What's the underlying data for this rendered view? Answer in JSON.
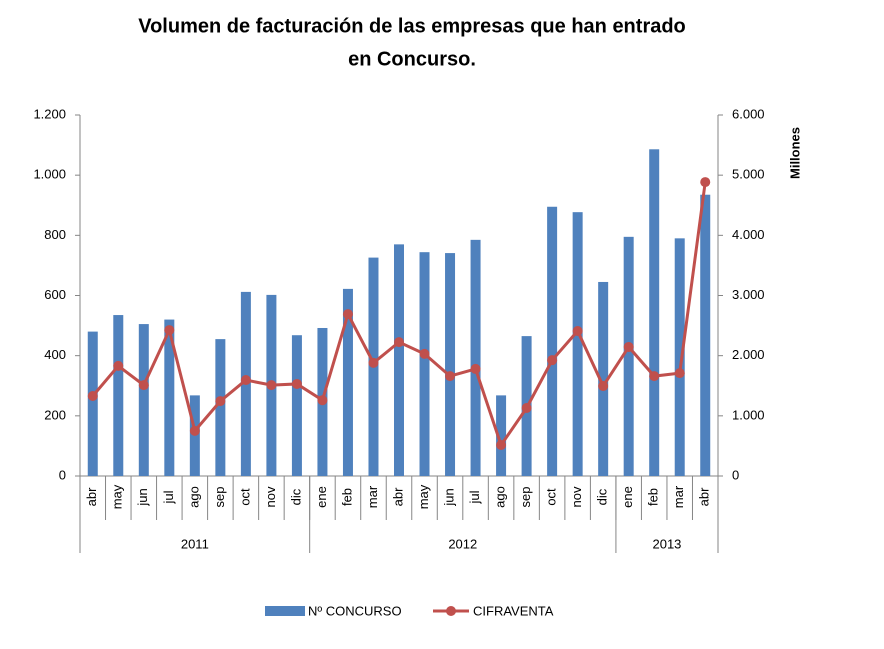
{
  "chart_data": {
    "type": "bar_line",
    "title": "Volumen de facturación de las empresas que han entrado",
    "subtitle": "en Concurso.",
    "y2_label": "Millones",
    "categories": [
      "abr",
      "may",
      "jun",
      "jul",
      "ago",
      "sep",
      "oct",
      "nov",
      "dic",
      "ene",
      "feb",
      "mar",
      "abr",
      "may",
      "jun",
      "jul",
      "ago",
      "sep",
      "oct",
      "nov",
      "dic",
      "ene",
      "feb",
      "mar",
      "abr"
    ],
    "groups": [
      {
        "label": "2011",
        "size": 9
      },
      {
        "label": "2012",
        "size": 12
      },
      {
        "label": "2013",
        "size": 4
      }
    ],
    "series": [
      {
        "name": "Nº CONCURSO",
        "type": "bar",
        "color": "#4f81bd",
        "values": [
          480,
          535,
          505,
          520,
          268,
          455,
          612,
          602,
          468,
          492,
          622,
          726,
          770,
          744,
          741,
          785,
          268,
          465,
          895,
          877,
          645,
          795,
          1086,
          790,
          935
        ]
      },
      {
        "name": "CIFRAVENTA",
        "type": "line",
        "axis": "y2",
        "color": "#c0504d",
        "values": [
          1330,
          1830,
          1510,
          2425,
          750,
          1245,
          1595,
          1510,
          1530,
          1260,
          2690,
          1880,
          2225,
          2030,
          1660,
          1780,
          515,
          1130,
          1925,
          2410,
          1495,
          2145,
          1660,
          1710,
          4885
        ]
      }
    ],
    "ylim": [
      0,
      1200
    ],
    "yticks": [
      0,
      200,
      400,
      600,
      800,
      {
        "value": 1000,
        "label": "1.000"
      },
      {
        "value": 1200,
        "label": "1.200"
      }
    ],
    "y2lim": [
      0,
      6000
    ],
    "y2ticks": [
      0,
      {
        "value": 1000,
        "label": "1.000"
      },
      {
        "value": 2000,
        "label": "2.000"
      },
      {
        "value": 3000,
        "label": "3.000"
      },
      {
        "value": 4000,
        "label": "4.000"
      },
      {
        "value": 5000,
        "label": "5.000"
      },
      {
        "value": 6000,
        "label": "6.000"
      }
    ],
    "grid": false,
    "legend": "bottom"
  }
}
